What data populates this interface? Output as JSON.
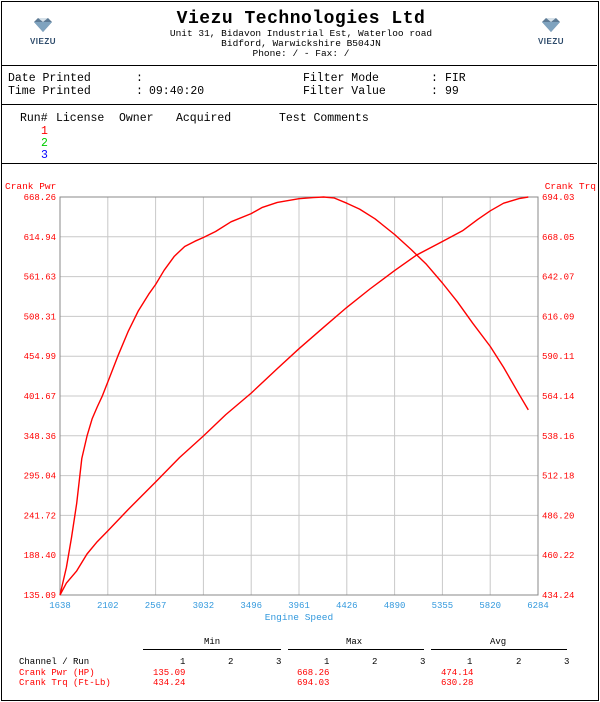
{
  "header": {
    "company": "Viezu Technologies Ltd",
    "address_line1": "Unit 31, Bidavon Industrial Est, Waterloo road",
    "address_line2": "Bidford, Warwickshire  B504JN",
    "contact": "Phone: /  - Fax: /",
    "logo_text": "VIEZU"
  },
  "info": {
    "date_printed_label": "Date Printed",
    "date_printed_value": "",
    "time_printed_label": "Time Printed",
    "time_printed_value": "09:40:20",
    "filter_mode_label": "Filter Mode",
    "filter_mode_value": "FIR",
    "filter_value_label": "Filter Value",
    "filter_value_value": "99"
  },
  "runs": {
    "headers": [
      "Run#",
      "License",
      "Owner",
      "Acquired",
      "Test Comments"
    ],
    "items": [
      {
        "num": "1",
        "color": "#ff0000"
      },
      {
        "num": "2",
        "color": "#00cc00"
      },
      {
        "num": "3",
        "color": "#0000ff"
      }
    ]
  },
  "chart_data": {
    "type": "line",
    "xlabel": "Engine Speed",
    "ylabel_left": "Crank Pwr",
    "ylabel_right": "Crank Trq",
    "xlim": [
      1638,
      6284
    ],
    "ylim_left": [
      135.09,
      668.26
    ],
    "ylim_right": [
      434.24,
      694.03
    ],
    "x_ticks": [
      "1638",
      "2102",
      "2567",
      "3032",
      "3496",
      "3961",
      "4426",
      "4890",
      "5355",
      "5820",
      "6284"
    ],
    "y_ticks_left": [
      "135.09",
      "188.40",
      "241.72",
      "295.04",
      "348.36",
      "401.67",
      "454.99",
      "508.31",
      "561.63",
      "614.94",
      "668.26"
    ],
    "y_ticks_right": [
      "434.24",
      "460.22",
      "486.20",
      "512.18",
      "538.16",
      "564.14",
      "590.11",
      "616.09",
      "642.07",
      "668.05",
      "694.03"
    ],
    "grid": true,
    "series": [
      {
        "axis": "left",
        "color": "#ff0000",
        "x": [
          1638,
          1700,
          1750,
          1800,
          1850,
          1900,
          1950,
          2000,
          2050,
          2102,
          2200,
          2300,
          2400,
          2500,
          2567,
          2650,
          2750,
          2850,
          2950,
          3032,
          3150,
          3300,
          3496,
          3600,
          3750,
          3961,
          4100,
          4200,
          4300,
          4426,
          4550,
          4700,
          4890,
          5050,
          5200,
          5355,
          5500,
          5650,
          5820,
          5950,
          6100,
          6190
        ],
        "y": [
          135.1,
          172,
          212,
          258,
          318,
          348,
          371,
          387,
          402,
          420,
          455,
          488,
          516,
          538,
          551,
          570,
          589,
          602,
          609,
          614,
          622,
          635,
          646,
          654,
          661,
          666,
          667.5,
          668.3,
          667,
          660,
          652,
          639,
          618,
          598,
          578,
          553,
          528,
          499,
          468,
          440,
          404,
          383
        ]
      },
      {
        "axis": "right",
        "color": "#ff0000",
        "x": [
          1638,
          1700,
          1800,
          1900,
          2000,
          2102,
          2300,
          2567,
          2800,
          3032,
          3250,
          3496,
          3750,
          3961,
          4200,
          4426,
          4650,
          4890,
          5100,
          5355,
          5550,
          5700,
          5820,
          5950,
          6100,
          6190
        ],
        "y": [
          434.24,
          442,
          450,
          461,
          469,
          476,
          490,
          508,
          524,
          538,
          552,
          566,
          582,
          595,
          609,
          622,
          634,
          646,
          656,
          665,
          672,
          679.5,
          685,
          690,
          693,
          694.03
        ]
      }
    ],
    "stats": {
      "headers": [
        "Min",
        "Max",
        "Avg"
      ],
      "runs": [
        "1",
        "2",
        "3"
      ],
      "row_header": "Channel / Run",
      "rows": [
        {
          "label": "Crank Pwr (HP)",
          "min": "135.09",
          "max": "668.26",
          "avg": "474.14"
        },
        {
          "label": "Crank Trq (Ft-Lb)",
          "min": "434.24",
          "max": "694.03",
          "avg": "630.28"
        }
      ]
    }
  }
}
